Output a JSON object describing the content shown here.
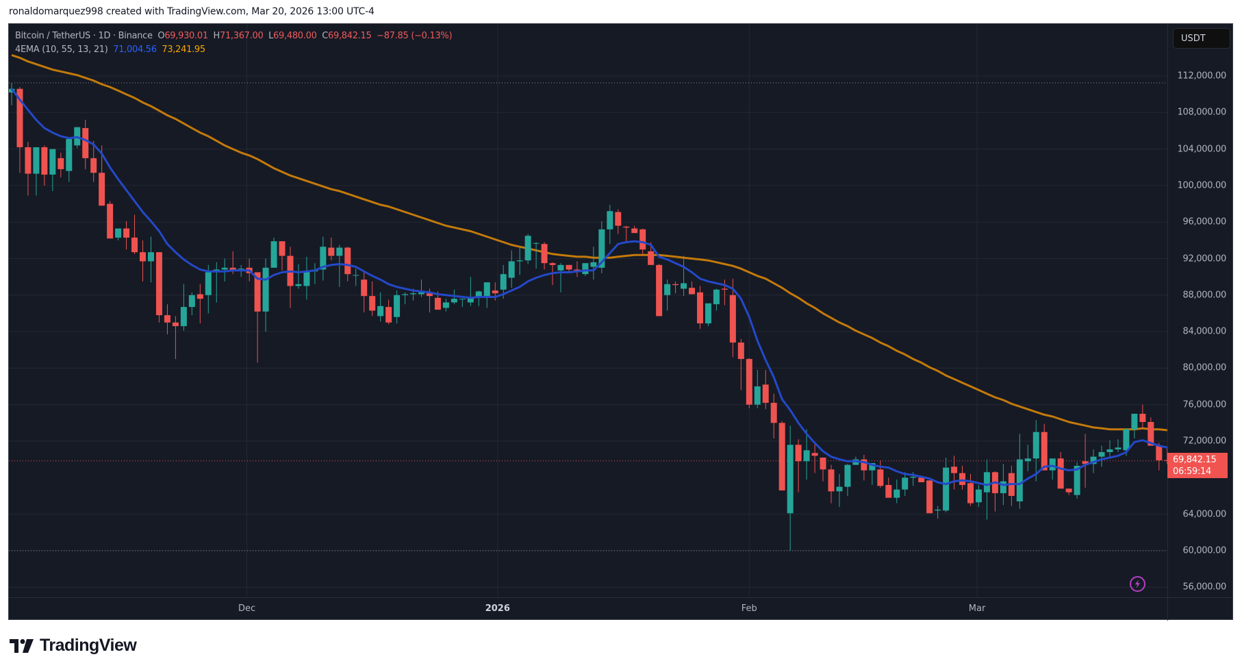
{
  "header": {
    "note": "ronaldomarquez998 created with TradingView.com, Mar 20, 2026 13:00 UTC-4"
  },
  "legend": {
    "symbol": "Bitcoin / TetherUS · 1D · Binance",
    "open_label": "O",
    "open": "69,930.01",
    "high_label": "H",
    "high": "71,367.00",
    "low_label": "L",
    "low": "69,480.00",
    "close_label": "C",
    "close": "69,842.15",
    "change": "−87.85 (−0.13%)",
    "indicator": "4EMA (10, 55, 13, 21)",
    "ema_fast": "71,004.56",
    "ema_slow": "73,241.95"
  },
  "price_axis": {
    "currency": "USDT",
    "last_price": "69,842.15",
    "countdown": "06:59:14"
  },
  "colors": {
    "background": "#161a25",
    "up": "#26a69a",
    "down": "#ef5350",
    "ema_fast": "#2449c9",
    "ema_slow": "#c47a0a",
    "grid": "#242833",
    "bolt": "#b33fc6"
  },
  "footer": {
    "brand": "TradingView"
  },
  "chart_data": {
    "type": "candlestick",
    "title": "Bitcoin / TetherUS · 1D · Binance",
    "xlabel": "",
    "ylabel": "USDT",
    "ylim": [
      54900,
      114400
    ],
    "y_ticks": [
      112000,
      108000,
      104000,
      100000,
      96000,
      92000,
      88000,
      84000,
      80000,
      76000,
      72000,
      64000,
      60000,
      56000
    ],
    "y_tick_labels": [
      "112,000.00",
      "108,000.00",
      "104,000.00",
      "100,000.00",
      "96,000.00",
      "92,000.00",
      "88,000.00",
      "84,000.00",
      "80,000.00",
      "76,000.00",
      "72,000.00",
      "64,000.00",
      "60,000.00",
      "56,000.00"
    ],
    "x_ticks": [
      {
        "label": "Dec",
        "index": 28.7,
        "bold": false
      },
      {
        "label": "2026",
        "index": 59.3,
        "bold": true
      },
      {
        "label": "Feb",
        "index": 90.0,
        "bold": false
      },
      {
        "label": "Mar",
        "index": 117.8,
        "bold": false
      }
    ],
    "high_line": 111250,
    "low_line": 60000,
    "last_price": 69842.15,
    "legend": [
      "Bitcoin / TetherUS",
      "EMA 10 (71,004.56)",
      "EMA 55 (73,241.95)"
    ],
    "ohlc": [
      [
        110200,
        111250,
        108800,
        110600
      ],
      [
        110600,
        110800,
        101400,
        104200
      ],
      [
        104200,
        104800,
        98900,
        101300
      ],
      [
        101300,
        103000,
        98900,
        104200
      ],
      [
        104200,
        104400,
        100000,
        101200
      ],
      [
        101200,
        103700,
        99400,
        104000
      ],
      [
        103000,
        103600,
        100900,
        101800
      ],
      [
        101600,
        104800,
        100400,
        105100
      ],
      [
        104400,
        106400,
        104100,
        106400
      ],
      [
        106300,
        107200,
        101800,
        103000
      ],
      [
        103000,
        104900,
        100400,
        101400
      ],
      [
        101400,
        104400,
        98800,
        97800
      ],
      [
        98000,
        98300,
        94900,
        94200
      ],
      [
        94300,
        95000,
        94000,
        95300
      ],
      [
        95300,
        96100,
        93000,
        94300
      ],
      [
        94300,
        96800,
        92500,
        92700
      ],
      [
        92700,
        94000,
        89500,
        91700
      ],
      [
        91700,
        94400,
        89400,
        92700
      ],
      [
        92700,
        92700,
        85000,
        85800
      ],
      [
        85800,
        87000,
        83700,
        85000
      ],
      [
        85000,
        85700,
        81000,
        84600
      ],
      [
        84600,
        89200,
        84100,
        86700
      ],
      [
        86700,
        88300,
        85800,
        88000
      ],
      [
        88100,
        89200,
        84900,
        87600
      ],
      [
        88000,
        91300,
        86000,
        90500
      ],
      [
        90500,
        91600,
        87200,
        90800
      ],
      [
        90800,
        92000,
        89500,
        91000
      ],
      [
        91000,
        92800,
        90300,
        90700
      ],
      [
        90900,
        91300,
        90000,
        90900
      ],
      [
        91000,
        92000,
        89500,
        90400
      ],
      [
        90500,
        90500,
        80600,
        86200
      ],
      [
        86200,
        92000,
        84000,
        91000
      ],
      [
        91000,
        94300,
        92000,
        93900
      ],
      [
        93900,
        93900,
        90700,
        92300
      ],
      [
        92300,
        93300,
        86600,
        89000
      ],
      [
        89000,
        91400,
        88700,
        89200
      ],
      [
        89000,
        92200,
        87500,
        90600
      ],
      [
        90600,
        91500,
        89200,
        90800
      ],
      [
        90800,
        94400,
        89600,
        93300
      ],
      [
        93200,
        94300,
        91800,
        92300
      ],
      [
        92300,
        93500,
        88900,
        93200
      ],
      [
        93200,
        93300,
        89500,
        90300
      ],
      [
        90200,
        90900,
        89000,
        90200
      ],
      [
        89700,
        90600,
        86100,
        87900
      ],
      [
        87900,
        89500,
        85700,
        86300
      ],
      [
        85700,
        88300,
        85100,
        86800
      ],
      [
        86700,
        87500,
        84800,
        85000
      ],
      [
        85600,
        88500,
        84900,
        88000
      ],
      [
        88000,
        88300,
        87000,
        88100
      ],
      [
        88100,
        88700,
        87400,
        88200
      ],
      [
        88100,
        89700,
        87800,
        88300
      ],
      [
        88200,
        88700,
        86100,
        87900
      ],
      [
        87700,
        88400,
        86800,
        86400
      ],
      [
        86600,
        87600,
        86200,
        87200
      ],
      [
        87200,
        88600,
        87000,
        87600
      ],
      [
        87600,
        87600,
        86700,
        87600
      ],
      [
        87200,
        90000,
        86800,
        87700
      ],
      [
        87700,
        88500,
        86800,
        88400
      ],
      [
        87700,
        88800,
        86600,
        89400
      ],
      [
        88500,
        89400,
        87400,
        88200
      ],
      [
        88600,
        91300,
        87600,
        90300
      ],
      [
        89900,
        92900,
        88800,
        91700
      ],
      [
        91700,
        93300,
        90200,
        91800
      ],
      [
        91800,
        94700,
        91400,
        94500
      ],
      [
        93700,
        93800,
        90900,
        93700
      ],
      [
        93600,
        93800,
        90800,
        91500
      ],
      [
        91500,
        91600,
        89100,
        91300
      ],
      [
        90700,
        91500,
        88300,
        91300
      ],
      [
        91300,
        91300,
        90600,
        90800
      ],
      [
        90800,
        91700,
        90000,
        90700
      ],
      [
        90300,
        91500,
        90100,
        91500
      ],
      [
        91100,
        93300,
        89700,
        91600
      ],
      [
        91000,
        96100,
        90400,
        95200
      ],
      [
        95200,
        97900,
        93600,
        97200
      ],
      [
        97100,
        97400,
        94700,
        95600
      ],
      [
        95500,
        95600,
        93900,
        95400
      ],
      [
        95300,
        95600,
        94800,
        94800
      ],
      [
        95200,
        95300,
        92400,
        93000
      ],
      [
        92800,
        93800,
        91500,
        91300
      ],
      [
        91300,
        91400,
        85700,
        85700
      ],
      [
        88000,
        89700,
        86300,
        89200
      ],
      [
        89200,
        89500,
        88200,
        89100
      ],
      [
        88700,
        92300,
        87900,
        89300
      ],
      [
        88800,
        89500,
        88300,
        88100
      ],
      [
        88300,
        89000,
        84300,
        84900
      ],
      [
        84900,
        86500,
        84600,
        87100
      ],
      [
        87000,
        88700,
        86300,
        88600
      ],
      [
        88700,
        89700,
        86900,
        88600
      ],
      [
        88000,
        89800,
        81200,
        82800
      ],
      [
        82800,
        83200,
        77600,
        81000
      ],
      [
        81000,
        81100,
        75600,
        76000
      ],
      [
        76000,
        79800,
        75600,
        78000
      ],
      [
        78200,
        79800,
        75500,
        76200
      ],
      [
        76200,
        77200,
        72300,
        74000
      ],
      [
        74000,
        74200,
        70500,
        66600
      ],
      [
        64100,
        73700,
        60000,
        71600
      ],
      [
        71600,
        72200,
        66400,
        69800
      ],
      [
        69800,
        73300,
        67800,
        71000
      ],
      [
        70700,
        71900,
        68500,
        70400
      ],
      [
        70200,
        70200,
        67600,
        68900
      ],
      [
        68900,
        69400,
        65200,
        66500
      ],
      [
        66500,
        68400,
        64800,
        67000
      ],
      [
        67000,
        69500,
        66000,
        69400
      ],
      [
        69400,
        70300,
        69400,
        70000
      ],
      [
        70000,
        70500,
        67700,
        68800
      ],
      [
        68800,
        69400,
        67200,
        69600
      ],
      [
        68900,
        69900,
        66900,
        67100
      ],
      [
        67200,
        68000,
        66300,
        65800
      ],
      [
        65800,
        67800,
        65200,
        66700
      ],
      [
        66700,
        68600,
        66000,
        68000
      ],
      [
        68000,
        68600,
        67100,
        68100
      ],
      [
        68000,
        68200,
        67500,
        67500
      ],
      [
        67700,
        67700,
        64300,
        64100
      ],
      [
        64400,
        64900,
        63500,
        64500
      ],
      [
        64400,
        70200,
        64200,
        69100
      ],
      [
        69200,
        70400,
        66700,
        68500
      ],
      [
        68500,
        69300,
        66700,
        67200
      ],
      [
        67400,
        68400,
        64900,
        65200
      ],
      [
        65300,
        67200,
        64800,
        66700
      ],
      [
        66400,
        70000,
        63400,
        68600
      ],
      [
        68600,
        68700,
        64300,
        66300
      ],
      [
        66300,
        69500,
        65000,
        67600
      ],
      [
        68500,
        69300,
        64900,
        66000
      ],
      [
        65400,
        72800,
        64600,
        70000
      ],
      [
        69800,
        71600,
        68700,
        70100
      ],
      [
        70100,
        74300,
        67600,
        73000
      ],
      [
        73000,
        73900,
        68800,
        68800
      ],
      [
        68800,
        70100,
        67800,
        70100
      ],
      [
        70100,
        70800,
        67300,
        66800
      ],
      [
        66800,
        66800,
        66100,
        66400
      ],
      [
        66100,
        69700,
        65700,
        69300
      ],
      [
        69800,
        72800,
        66900,
        69500
      ],
      [
        69500,
        71100,
        68500,
        70300
      ],
      [
        70300,
        71500,
        69200,
        70800
      ],
      [
        70800,
        72100,
        70300,
        71100
      ],
      [
        71100,
        72200,
        70800,
        71300
      ],
      [
        71000,
        73400,
        70400,
        73300
      ],
      [
        73300,
        74900,
        72300,
        75000
      ],
      [
        75000,
        76000,
        73400,
        74100
      ],
      [
        74100,
        74600,
        72200,
        71500
      ],
      [
        71500,
        71800,
        68800,
        69900
      ],
      [
        69930,
        71367,
        69480,
        69842
      ]
    ],
    "ema_fast": [
      110600,
      109400,
      108300,
      107200,
      106300,
      105800,
      105400,
      105200,
      105300,
      105000,
      104500,
      103500,
      102000,
      100700,
      99500,
      98300,
      97100,
      96100,
      95000,
      93600,
      92700,
      91900,
      91300,
      90800,
      90600,
      90600,
      90600,
      90700,
      90700,
      90700,
      89800,
      89700,
      90200,
      90500,
      90600,
      90500,
      90600,
      90700,
      91100,
      91300,
      91400,
      91300,
      91100,
      90600,
      90100,
      89700,
      89200,
      88900,
      88700,
      88500,
      88400,
      88300,
      88100,
      88000,
      87900,
      87800,
      87700,
      87800,
      87800,
      87800,
      88100,
      88500,
      88900,
      89500,
      89900,
      90200,
      90400,
      90500,
      90500,
      90600,
      90700,
      90700,
      91600,
      92600,
      93600,
      93800,
      93900,
      93800,
      93500,
      92200,
      91900,
      91500,
      91100,
      90500,
      89800,
      89500,
      89300,
      89100,
      88700,
      87600,
      85600,
      83000,
      80900,
      79000,
      76600,
      75400,
      74000,
      72800,
      71800,
      70900,
      70300,
      70000,
      69800,
      69800,
      69700,
      69400,
      69200,
      69100,
      68700,
      68400,
      68300,
      68100,
      67900,
      67500,
      67300,
      67600,
      67700,
      67600,
      67400,
      67200,
      67500,
      67200,
      67300,
      67300,
      67900,
      68400,
      69200,
      69300,
      69000,
      68800,
      68900,
      69400,
      69700,
      70000,
      70200,
      70400,
      70800,
      71900,
      72100,
      71800,
      71500,
      71300,
      71000
    ],
    "ema_slow": [
      114300,
      114000,
      113600,
      113300,
      113000,
      112700,
      112500,
      112300,
      112100,
      111800,
      111500,
      111100,
      110800,
      110400,
      110000,
      109600,
      109100,
      108700,
      108200,
      107700,
      107300,
      106800,
      106300,
      105800,
      105400,
      104900,
      104400,
      104000,
      103600,
      103300,
      102900,
      102400,
      101900,
      101500,
      101100,
      100800,
      100500,
      100200,
      99900,
      99600,
      99400,
      99100,
      98800,
      98500,
      98200,
      97900,
      97700,
      97400,
      97100,
      96800,
      96500,
      96200,
      95900,
      95600,
      95400,
      95200,
      95000,
      94700,
      94400,
      94100,
      93800,
      93500,
      93300,
      93100,
      92900,
      92700,
      92500,
      92400,
      92300,
      92200,
      92200,
      92100,
      92100,
      92100,
      92200,
      92300,
      92400,
      92400,
      92400,
      92400,
      92300,
      92200,
      92100,
      92000,
      91900,
      91800,
      91600,
      91400,
      91200,
      90900,
      90500,
      90100,
      89800,
      89300,
      88800,
      88200,
      87700,
      87100,
      86600,
      86000,
      85500,
      85000,
      84600,
      84100,
      83700,
      83300,
      82800,
      82400,
      81900,
      81500,
      81000,
      80600,
      80100,
      79700,
      79200,
      78800,
      78400,
      78000,
      77600,
      77200,
      76800,
      76500,
      76100,
      75800,
      75500,
      75200,
      74900,
      74700,
      74400,
      74100,
      73900,
      73700,
      73500,
      73400,
      73300,
      73300,
      73300,
      73300,
      73400,
      73300,
      73300,
      73200
    ]
  }
}
